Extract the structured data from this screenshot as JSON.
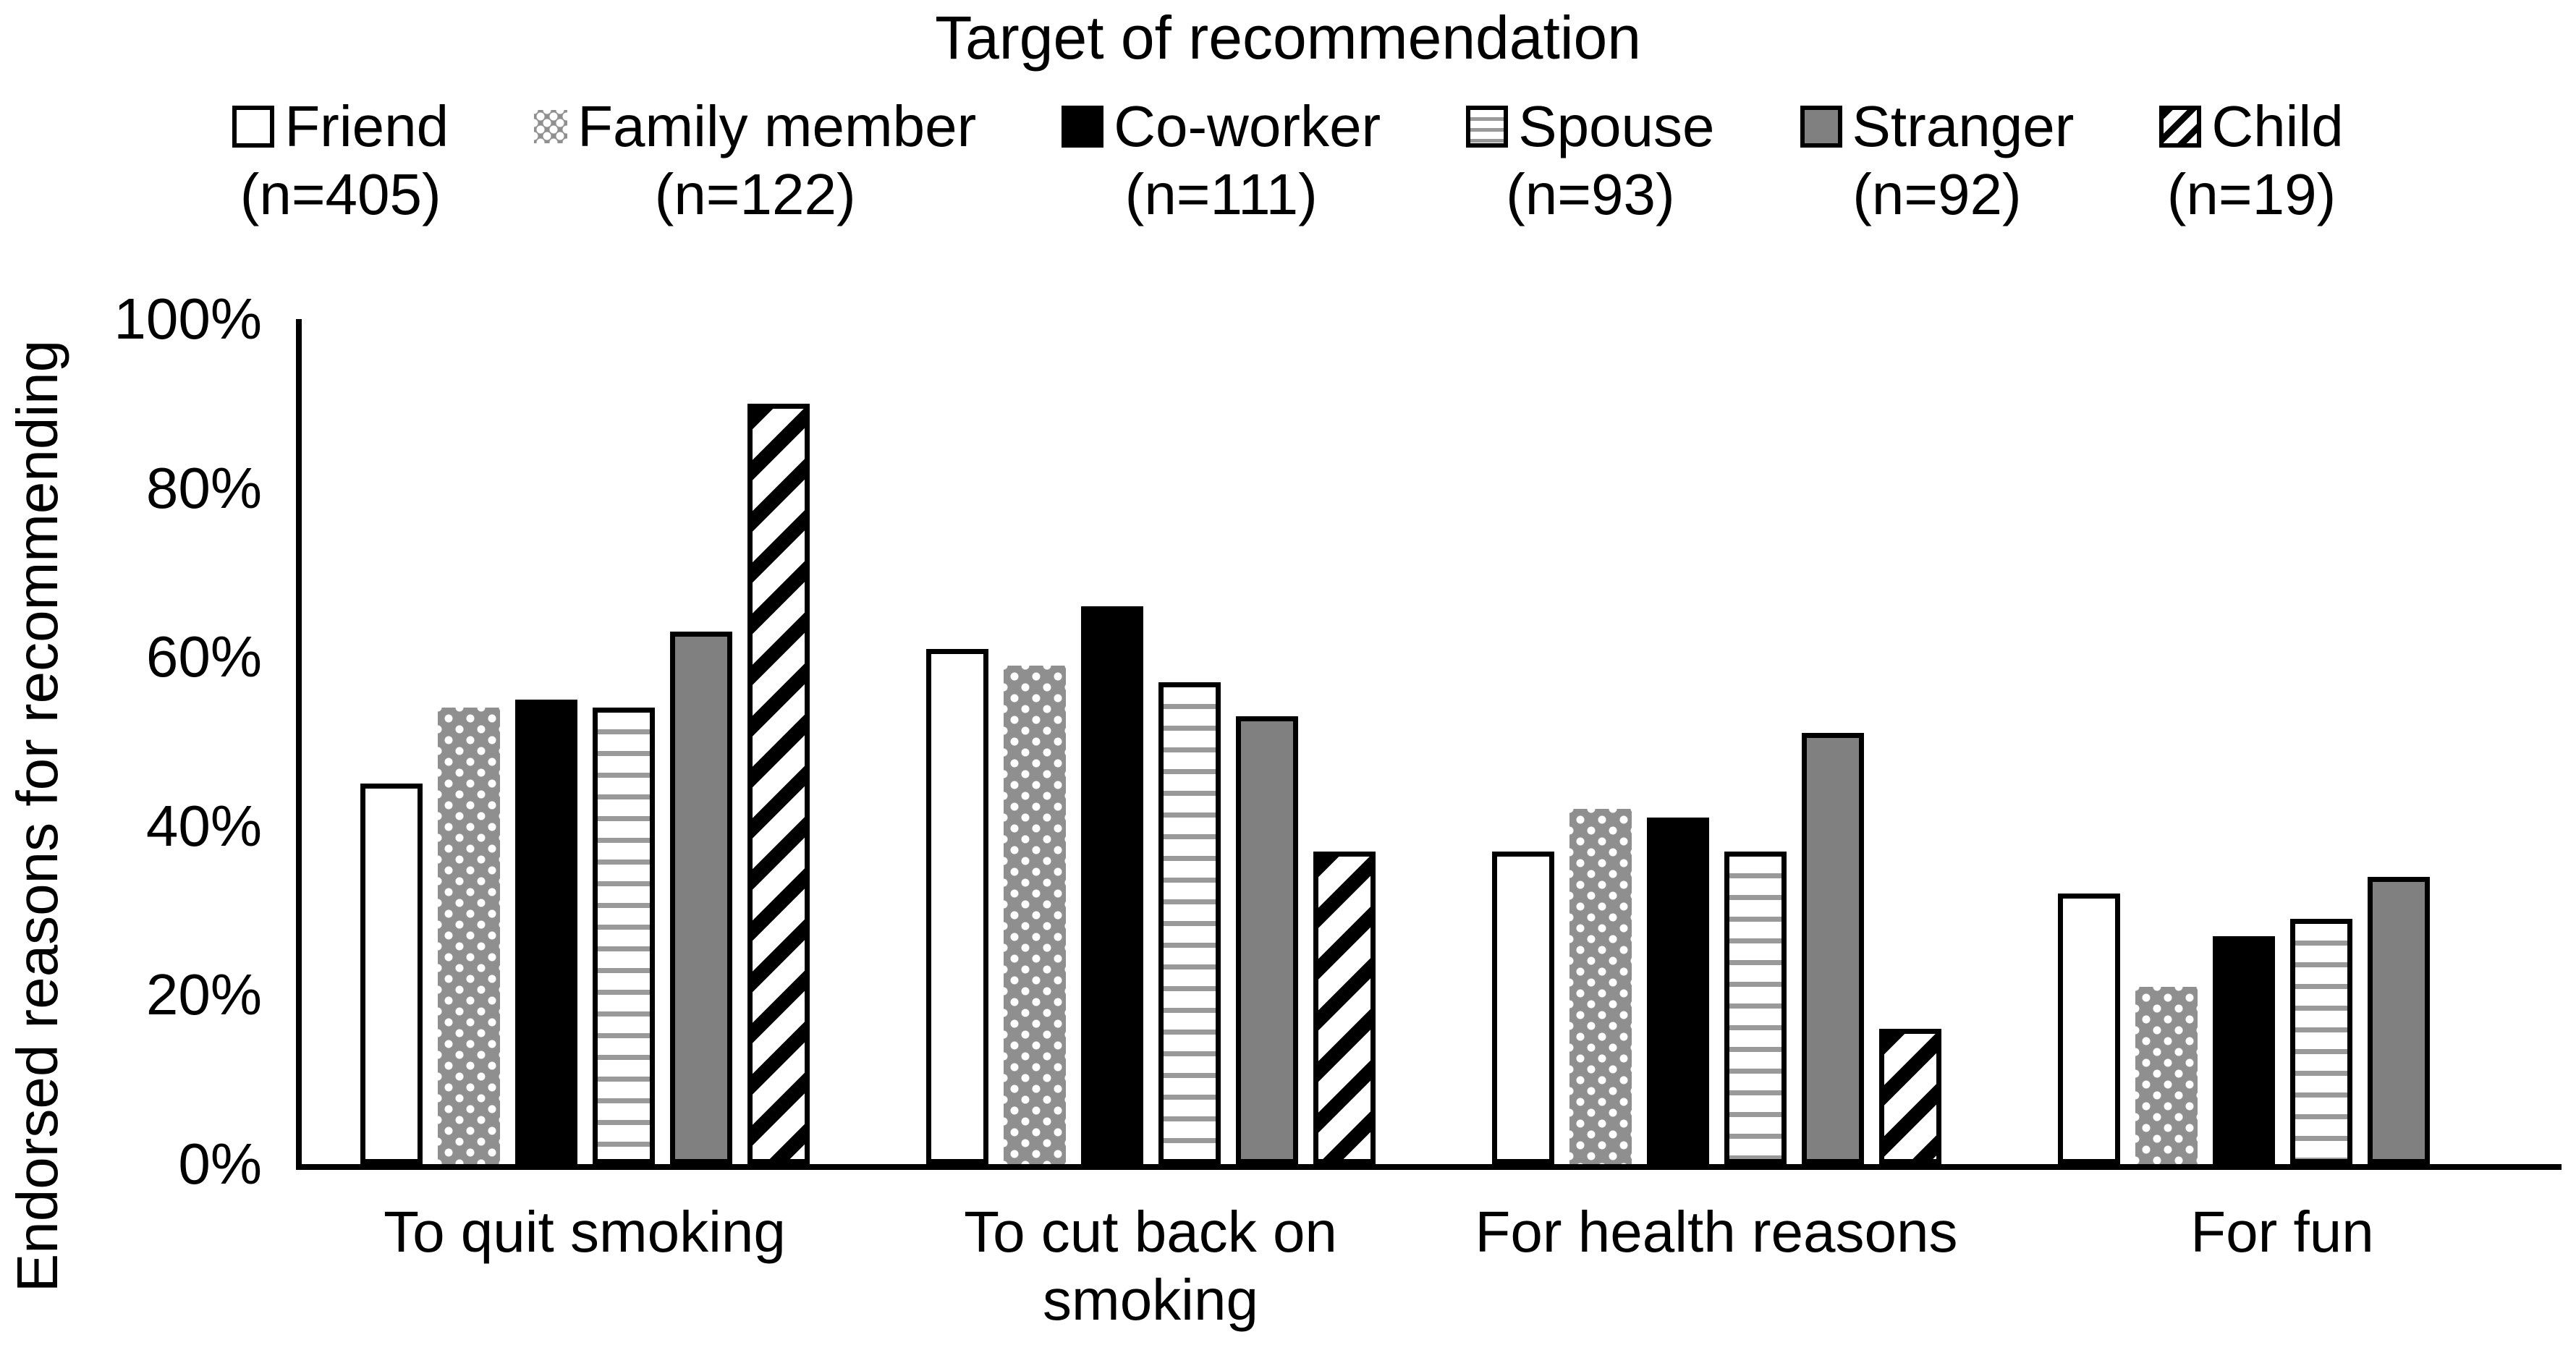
{
  "title": "Target of recommendation",
  "y_axis_title": "Endorsed reasons for recommending",
  "colors": {
    "foreground": "#000000",
    "background": "#ffffff",
    "gray_fill": "#808080",
    "dot_fill": "#8f8f8f",
    "line_gray": "#999999"
  },
  "legend": {
    "items": [
      {
        "label": "Friend",
        "n": "(n=405)",
        "pattern": "white"
      },
      {
        "label": "Family member",
        "n": "(n=122)",
        "pattern": "dots"
      },
      {
        "label": "Co-worker",
        "n": "(n=111)",
        "pattern": "black"
      },
      {
        "label": "Spouse",
        "n": "(n=93)",
        "pattern": "hlines"
      },
      {
        "label": "Stranger",
        "n": "(n=92)",
        "pattern": "gray"
      },
      {
        "label": "Child",
        "n": "(n=19)",
        "pattern": "diag"
      }
    ]
  },
  "chart_data": {
    "type": "bar",
    "title": "Target of recommendation",
    "xlabel": "",
    "ylabel": "Endorsed reasons for recommending",
    "ylim": [
      0,
      100
    ],
    "yticks": [
      "100%",
      "80%",
      "60%",
      "40%",
      "20%",
      "0%"
    ],
    "grid": false,
    "legend_position": "top",
    "categories": [
      "To quit smoking",
      "To cut back on smoking",
      "For health reasons",
      "For fun"
    ],
    "series": [
      {
        "name": "Friend (n=405)",
        "pattern": "white",
        "values": [
          45,
          61,
          37,
          32
        ]
      },
      {
        "name": "Family member (n=122)",
        "pattern": "dots",
        "values": [
          54,
          59,
          42,
          21
        ]
      },
      {
        "name": "Co-worker (n=111)",
        "pattern": "black",
        "values": [
          55,
          66,
          41,
          27
        ]
      },
      {
        "name": "Spouse (n=93)",
        "pattern": "hlines",
        "values": [
          54,
          57,
          37,
          29
        ]
      },
      {
        "name": "Stranger (n=92)",
        "pattern": "gray",
        "values": [
          63,
          53,
          51,
          34
        ]
      },
      {
        "name": "Child (n=19)",
        "pattern": "diag",
        "values": [
          90,
          37,
          16,
          0
        ]
      }
    ]
  }
}
